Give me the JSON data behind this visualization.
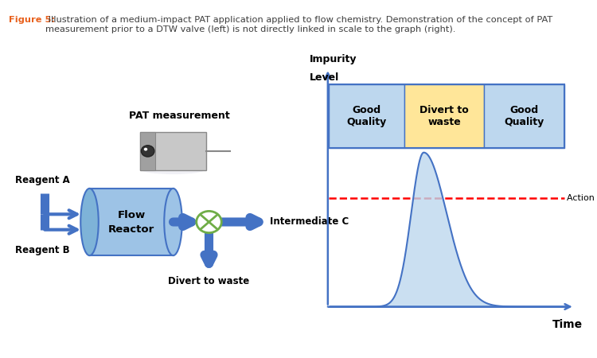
{
  "caption_bold": "Figure 5:",
  "caption_text": " Illustration of a medium-impact PAT application applied to flow chemistry. Demonstration of the concept of PAT\nmeasurement prior to a DTW valve (left) is not directly linked in scale to the graph (right).",
  "caption_color_bold": "#E8601C",
  "caption_color_text": "#3D3D3D",
  "caption_fontsize": 8.2,
  "graph_title_line1": "Impurity",
  "graph_title_line2": "Level",
  "graph_xlabel": "Time",
  "graph_arrow_color": "#4472C4",
  "action_limit_color": "#FF0000",
  "good_quality_color": "#BDD7EE",
  "divert_color": "#FFE699",
  "peak_color": "#BDD7EE",
  "peak_edge_color": "#4472C4",
  "box_left_label": "Good\nQuality",
  "box_middle_label": "Divert to\nwaste",
  "box_right_label": "Good\nQuality",
  "action_limit_label": "Action limit",
  "reagent_a_label": "Reagent A",
  "reagent_b_label": "Reagent B",
  "flow_reactor_label": "Flow\nReactor",
  "intermediate_c_label": "Intermediate C",
  "divert_to_waste_label": "Divert to waste",
  "pat_measurement_label": "PAT measurement",
  "reactor_color": "#4472C4",
  "reactor_face_color": "#9DC3E6",
  "arrow_color": "#4472C4",
  "valve_x_color": "#70AD47"
}
